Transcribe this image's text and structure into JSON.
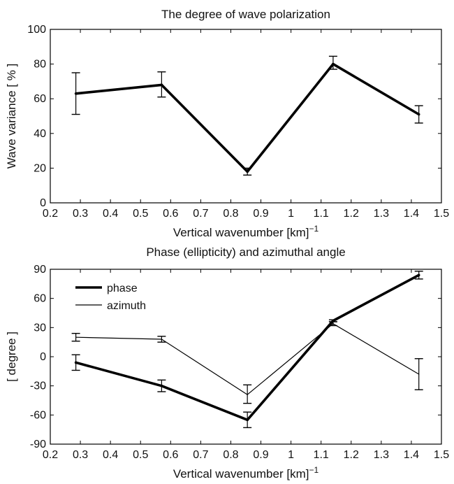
{
  "chart_data": [
    {
      "type": "line",
      "title": "The degree of wave polarization",
      "xlabel": "Vertical wavenumber [km]",
      "xlabel_exponent": "−1",
      "ylabel": "Wave variance [ % ]",
      "xlim": [
        0.2,
        1.5
      ],
      "ylim": [
        0,
        100
      ],
      "xticks": [
        "0.2",
        "0.3",
        "0.4",
        "0.5",
        "0.6",
        "0.7",
        "0.8",
        "0.9",
        "1",
        "1.1",
        "1.2",
        "1.3",
        "1.4",
        "1.5"
      ],
      "yticks": [
        "0",
        "20",
        "40",
        "60",
        "80",
        "100"
      ],
      "grid": false,
      "series": [
        {
          "x": [
            0.285,
            0.57,
            0.855,
            1.14,
            1.425
          ],
          "values": [
            63,
            68,
            18,
            80,
            51
          ],
          "err_low": [
            51,
            61,
            16,
            77,
            46
          ],
          "err_high": [
            75,
            75.5,
            20,
            84.5,
            56
          ],
          "color": "#000000",
          "weight": "thick"
        }
      ]
    },
    {
      "type": "line",
      "title": "Phase (ellipticity) and azimuthal angle",
      "xlabel": "Vertical wavenumber [km]",
      "xlabel_exponent": "−1",
      "ylabel": "[ degree ]",
      "xlim": [
        0.2,
        1.5
      ],
      "ylim": [
        -90,
        90
      ],
      "xticks": [
        "0.2",
        "0.3",
        "0.4",
        "0.5",
        "0.6",
        "0.7",
        "0.8",
        "0.9",
        "1",
        "1.1",
        "1.2",
        "1.3",
        "1.4",
        "1.5"
      ],
      "yticks": [
        "-90",
        "-60",
        "-30",
        "0",
        "30",
        "60",
        "90"
      ],
      "grid": false,
      "legend_position": "top-left",
      "series": [
        {
          "name": "phase",
          "x": [
            0.285,
            0.57,
            0.855,
            1.14,
            1.425
          ],
          "values": [
            -6,
            -30,
            -65,
            37,
            84
          ],
          "err_low": [
            -14,
            -36,
            -73,
            36,
            80
          ],
          "err_high": [
            2,
            -24,
            -57,
            38,
            88
          ],
          "color": "#000000",
          "weight": "thick"
        },
        {
          "name": "azimuth",
          "x": [
            0.285,
            0.57,
            0.855,
            1.14,
            1.425
          ],
          "values": [
            20,
            18,
            -39,
            34,
            -18
          ],
          "err_low": [
            16,
            15,
            -48,
            32,
            -34
          ],
          "err_high": [
            24,
            21,
            -29,
            36,
            -2
          ],
          "color": "#000000",
          "weight": "thin"
        }
      ]
    }
  ]
}
